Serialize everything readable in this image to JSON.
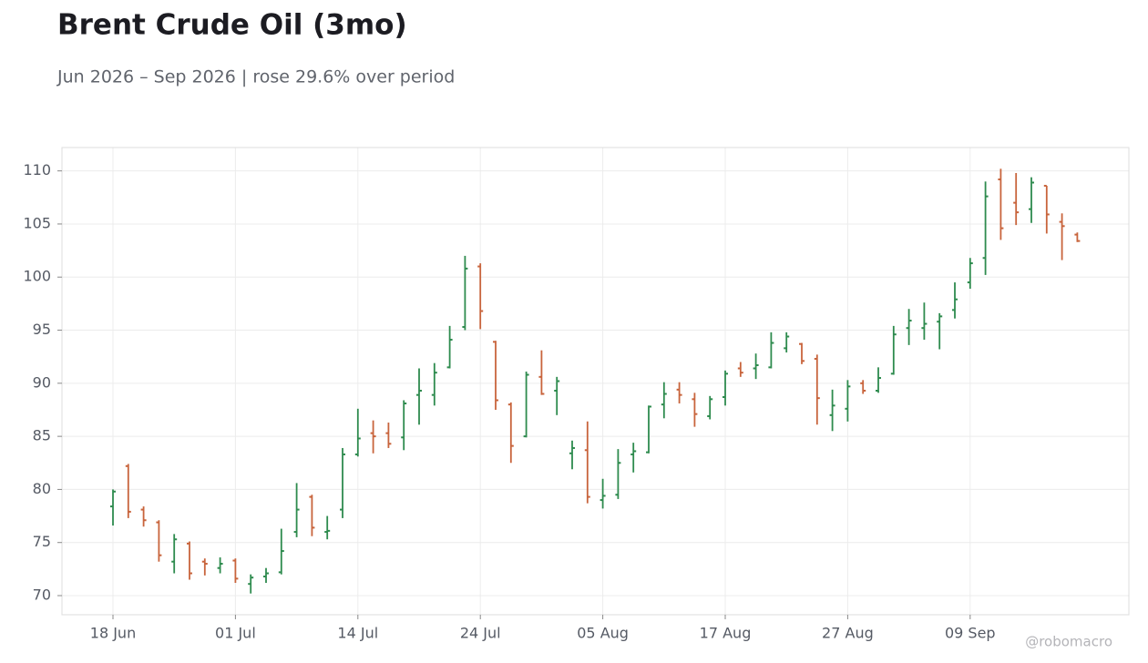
{
  "chart_data": {
    "type": "ohlc",
    "title": "Brent Crude Oil (3mo)",
    "subtitle": "Jun 2026 – Sep 2026 | rose 29.6% over period",
    "watermark": "@robomacro",
    "categories": [
      "18 Jun",
      null,
      null,
      null,
      null,
      null,
      null,
      null,
      "01 Jul",
      null,
      null,
      null,
      null,
      null,
      null,
      null,
      "14 Jul",
      null,
      null,
      null,
      null,
      null,
      null,
      null,
      "24 Jul",
      null,
      null,
      null,
      null,
      null,
      null,
      null,
      "05 Aug",
      null,
      null,
      null,
      null,
      null,
      null,
      null,
      "17 Aug",
      null,
      null,
      null,
      null,
      null,
      null,
      null,
      "27 Aug",
      null,
      null,
      null,
      null,
      null,
      null,
      null,
      "09 Sep",
      null,
      null,
      null,
      null,
      null,
      null,
      null
    ],
    "open": [
      78.4,
      82.2,
      78.1,
      76.9,
      73.2,
      74.9,
      73.2,
      72.6,
      73.3,
      71.1,
      71.8,
      72.2,
      76.0,
      79.3,
      76.0,
      78.1,
      83.3,
      85.3,
      85.3,
      84.9,
      88.9,
      88.9,
      91.5,
      95.3,
      101.0,
      93.9,
      88.0,
      85.0,
      90.6,
      89.3,
      83.4,
      83.7,
      79.0,
      79.5,
      83.3,
      83.5,
      88.0,
      89.4,
      88.5,
      86.9,
      88.7,
      91.4,
      91.4,
      91.5,
      93.3,
      93.7,
      92.3,
      87.0,
      87.6,
      90.0,
      89.3,
      90.9,
      95.2,
      95.2,
      95.8,
      96.9,
      99.5,
      101.8,
      109.2,
      107.0,
      106.4,
      108.6,
      105.2,
      104.0
    ],
    "high": [
      80.0,
      82.4,
      78.4,
      77.1,
      75.8,
      75.1,
      73.5,
      73.6,
      73.5,
      72.0,
      72.6,
      76.3,
      80.6,
      79.5,
      77.5,
      83.9,
      87.6,
      86.5,
      86.3,
      88.4,
      91.4,
      91.9,
      95.4,
      102.0,
      101.3,
      94.0,
      88.2,
      91.1,
      93.1,
      90.6,
      84.6,
      86.4,
      81.0,
      83.8,
      84.4,
      87.9,
      90.1,
      90.1,
      89.1,
      88.8,
      91.2,
      92.0,
      92.8,
      94.8,
      94.8,
      93.8,
      92.7,
      89.4,
      90.3,
      90.3,
      91.5,
      95.4,
      97.0,
      97.6,
      96.6,
      99.5,
      101.8,
      109.0,
      110.2,
      109.8,
      109.4,
      108.6,
      106.0,
      104.2
    ],
    "low": [
      76.6,
      77.3,
      76.5,
      73.2,
      72.1,
      71.5,
      71.9,
      72.1,
      71.2,
      70.2,
      71.2,
      72.0,
      75.5,
      75.6,
      75.3,
      77.3,
      83.1,
      83.4,
      83.9,
      83.7,
      86.1,
      87.9,
      91.4,
      95.0,
      95.1,
      87.5,
      82.5,
      84.9,
      88.9,
      87.0,
      81.9,
      78.7,
      78.2,
      79.1,
      81.6,
      83.4,
      86.7,
      88.1,
      85.9,
      86.6,
      87.9,
      90.6,
      90.4,
      91.4,
      92.9,
      91.8,
      86.1,
      85.5,
      86.4,
      89.0,
      89.1,
      90.8,
      93.6,
      94.1,
      93.2,
      96.1,
      98.9,
      100.2,
      103.5,
      104.9,
      105.1,
      104.1,
      101.6,
      103.3
    ],
    "close": [
      79.8,
      77.9,
      77.1,
      73.8,
      75.3,
      72.1,
      73.0,
      73.0,
      71.6,
      71.7,
      72.1,
      74.2,
      78.1,
      76.4,
      76.1,
      83.3,
      84.8,
      85.0,
      84.3,
      88.1,
      89.3,
      91.0,
      94.1,
      100.8,
      96.8,
      88.4,
      84.1,
      90.8,
      89.0,
      90.2,
      83.9,
      79.3,
      79.4,
      82.5,
      83.6,
      87.8,
      89.0,
      88.9,
      87.1,
      88.5,
      90.9,
      91.0,
      91.7,
      93.8,
      94.4,
      92.1,
      88.6,
      87.9,
      89.7,
      89.3,
      90.5,
      94.6,
      95.9,
      95.6,
      96.3,
      97.9,
      101.3,
      107.6,
      104.6,
      106.1,
      108.9,
      105.9,
      104.8,
      103.4
    ],
    "up_color": "#2e8b4e",
    "down_color": "#c8643c",
    "ylim": [
      68.2,
      112.2
    ],
    "yticks": [
      70,
      75,
      80,
      85,
      90,
      95,
      100,
      105,
      110
    ],
    "grid": true
  }
}
